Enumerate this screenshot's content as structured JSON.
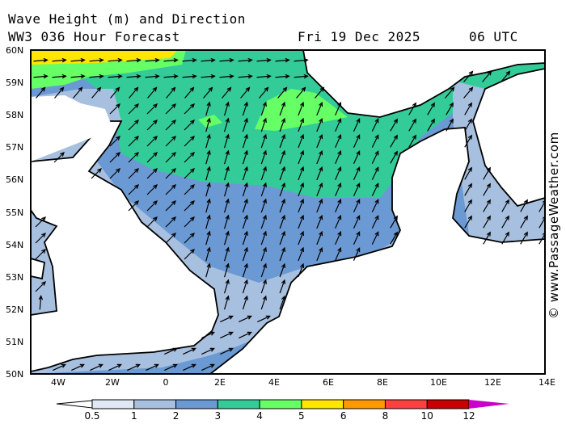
{
  "header": {
    "title": "Wave Height (m) and Direction",
    "model": "WW3 036 Hour Forecast",
    "date": "Fri 19 Dec 2025",
    "time": "06 UTC"
  },
  "watermark": "© www.PassageWeather.com",
  "lat_labels": [
    "60N",
    "59N",
    "58N",
    "57N",
    "56N",
    "55N",
    "54N",
    "53N",
    "52N",
    "51N",
    "50N"
  ],
  "lon_labels": [
    "4W",
    "2W",
    "0",
    "2E",
    "4E",
    "6E",
    "8E",
    "10E",
    "12E",
    "14E"
  ],
  "legend": {
    "labels": [
      "0.5",
      "1",
      "2",
      "3",
      "4",
      "5",
      "6",
      "8",
      "10",
      "12"
    ],
    "colors": [
      "#e0e8f4",
      "#a8c0e0",
      "#6b99d3",
      "#33cc99",
      "#66ff66",
      "#ffe600",
      "#ff9900",
      "#ff4040",
      "#c80000"
    ],
    "over_color": "#cc00cc"
  }
}
